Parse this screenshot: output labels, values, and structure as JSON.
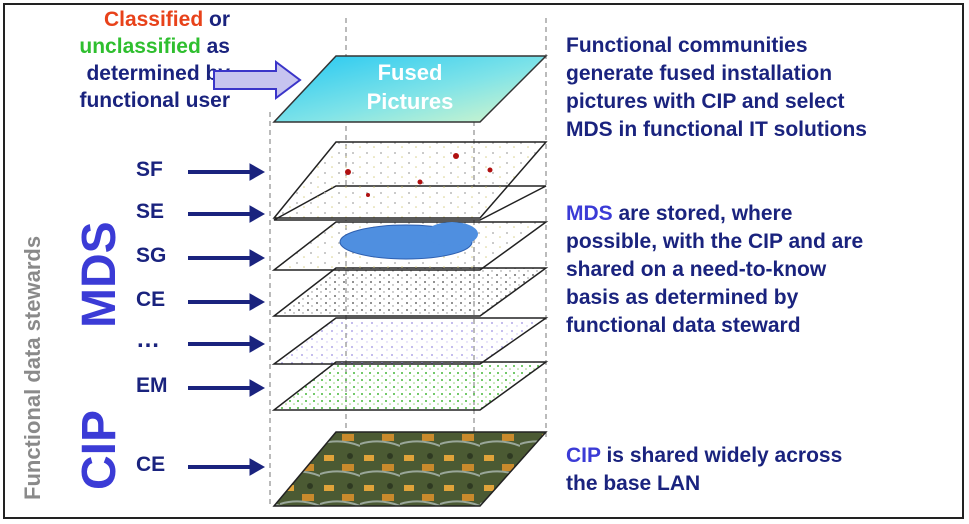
{
  "header_note": {
    "classified": "Classified",
    "or": " or",
    "unclassified": "unclassified",
    "as": " as",
    "line3": "determined by",
    "line4": "functional user"
  },
  "fused": {
    "line1": "Fused",
    "line2": "Pictures"
  },
  "right_text": {
    "p1": [
      "Functional communities",
      "generate fused installation",
      "pictures with CIP and select",
      "MDS in functional IT solutions"
    ],
    "p2_highlight": "MDS",
    "p2_first_rest": " are stored, where",
    "p2": [
      "possible, with the CIP and are",
      "shared on a need-to-know",
      "basis as determined by",
      "functional data steward"
    ],
    "p3_highlight": "CIP",
    "p3_first_rest": " is shared widely across",
    "p3_line2": "the base LAN"
  },
  "vertical": {
    "stewards": "Functional data stewards",
    "mds": "MDS",
    "cip": "CIP"
  },
  "layers": [
    {
      "label": "SF"
    },
    {
      "label": "SE"
    },
    {
      "label": "SG"
    },
    {
      "label": "CE"
    },
    {
      "label": "…"
    },
    {
      "label": "EM"
    },
    {
      "label": "CE"
    }
  ],
  "colors": {
    "red": "#e8421a",
    "green": "#2fbf2f",
    "navy": "#1a237e",
    "blue": "#3b3bd6",
    "gray": "#8a8a8a"
  }
}
